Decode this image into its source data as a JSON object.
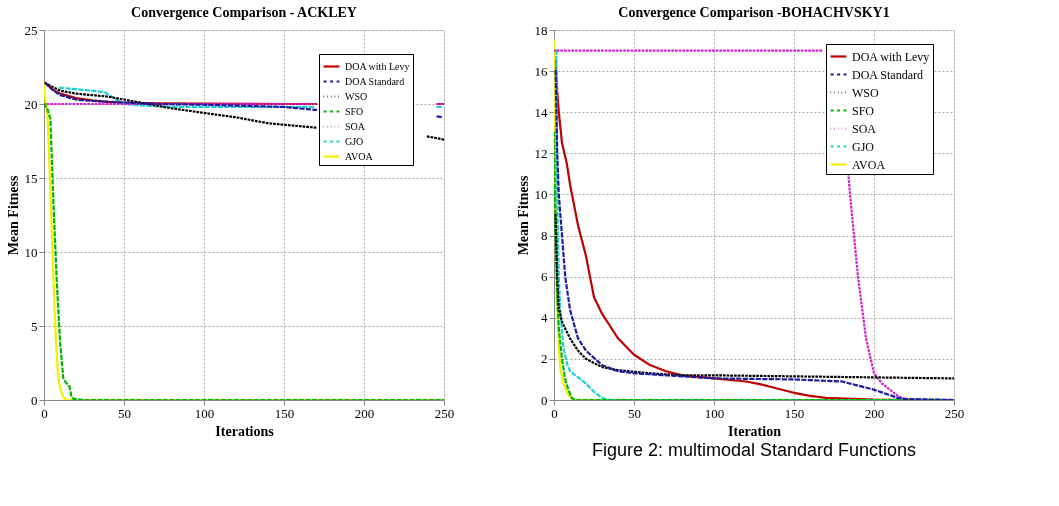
{
  "chart_data": [
    {
      "type": "line",
      "title": "Convergence Comparison - ACKLEY",
      "xlabel": "Iterations",
      "ylabel": "Mean Fitness",
      "xlim": [
        0,
        250
      ],
      "xticks": [
        0,
        50,
        100,
        150,
        200,
        250
      ],
      "ylim": [
        0,
        25
      ],
      "yticks": [
        0,
        5,
        10,
        15,
        20,
        25
      ],
      "grid": true,
      "legend": "top right",
      "series": [
        {
          "name": "DOA with Levy",
          "color": "#c00000",
          "line_style": "solid",
          "x": [
            1,
            5,
            10,
            20,
            30,
            40,
            50,
            70,
            100,
            150,
            170,
            200,
            246,
            250
          ],
          "values": [
            21.4,
            21.0,
            20.7,
            20.4,
            20.25,
            20.15,
            20.1,
            20.05,
            20.02,
            20.0,
            20.0,
            null,
            20.0,
            20.0
          ]
        },
        {
          "name": "DOA Standard",
          "color": "#1c1c9c",
          "line_style": "dashed",
          "x": [
            1,
            5,
            10,
            20,
            30,
            40,
            50,
            70,
            100,
            150,
            170,
            180,
            220,
            246,
            250
          ],
          "values": [
            21.4,
            21.0,
            20.6,
            20.3,
            20.2,
            20.15,
            20.1,
            20.0,
            19.95,
            19.8,
            19.6,
            null,
            null,
            19.15,
            19.1
          ]
        },
        {
          "name": "WSO",
          "color": "#000000",
          "line_style": "dotted",
          "x": [
            1,
            10,
            20,
            30,
            40,
            50,
            60,
            70,
            80,
            100,
            120,
            140,
            160,
            170,
            180,
            200,
            220,
            240,
            250
          ],
          "values": [
            21.4,
            20.9,
            20.7,
            20.6,
            20.5,
            20.3,
            20.1,
            19.9,
            19.7,
            19.4,
            19.1,
            18.7,
            18.5,
            18.4,
            null,
            null,
            null,
            17.8,
            17.6
          ]
        },
        {
          "name": "SFO",
          "color": "#00b400",
          "line_style": "dashed",
          "x": [
            0,
            2,
            4,
            5,
            6,
            8,
            10,
            12,
            13,
            15,
            16,
            17,
            18,
            20,
            25,
            250
          ],
          "values": [
            20,
            19.7,
            19.0,
            16,
            13,
            8,
            4,
            1.5,
            1.3,
            1.0,
            0.9,
            0.3,
            0.1,
            0.05,
            0,
            0
          ]
        },
        {
          "name": "SOA",
          "color": "#d020d0",
          "line_style": "dotted",
          "x": [
            0,
            170,
            200,
            246,
            250
          ],
          "values": [
            20,
            20,
            null,
            20,
            20
          ]
        },
        {
          "name": "GJO",
          "color": "#20d0d0",
          "line_style": "dashed",
          "x": [
            10,
            20,
            30,
            38,
            45,
            50,
            60,
            80,
            100,
            150,
            170,
            200,
            246,
            250
          ],
          "values": [
            21.1,
            21.0,
            20.9,
            20.8,
            20.3,
            20.0,
            19.9,
            19.8,
            19.8,
            19.8,
            19.8,
            null,
            19.8,
            19.8
          ]
        },
        {
          "name": "AVOA",
          "color": "#f0f000",
          "line_style": "solid",
          "x": [
            0,
            1,
            2,
            3,
            4,
            5,
            6,
            7,
            8,
            9,
            10,
            12,
            14,
            250
          ],
          "values": [
            21.4,
            20,
            19.6,
            17,
            14,
            11,
            8,
            5,
            3,
            1.5,
            0.8,
            0.2,
            0,
            0
          ]
        }
      ]
    },
    {
      "type": "line",
      "title": "Convergence Comparison -BOHACHVSKY1",
      "xlabel": "Iteration",
      "ylabel": "Mean Fitness",
      "xlim": [
        0,
        250
      ],
      "xticks": [
        0,
        50,
        100,
        150,
        200,
        250
      ],
      "ylim": [
        0,
        18
      ],
      "yticks": [
        0,
        2,
        4,
        6,
        8,
        10,
        12,
        14,
        16,
        18
      ],
      "grid": true,
      "legend": "top right",
      "annotations": [
        "Figure 2: multimodal Standard Functions"
      ],
      "series": [
        {
          "name": "DOA with Levy",
          "color": "#c00000",
          "line_style": "solid",
          "x": [
            1,
            2,
            3,
            5,
            8,
            10,
            15,
            20,
            25,
            30,
            35,
            40,
            50,
            60,
            70,
            80,
            100,
            120,
            130,
            140,
            150,
            160,
            170,
            200,
            250
          ],
          "values": [
            16.5,
            15,
            14,
            12.5,
            11.5,
            10.5,
            8.5,
            7,
            5,
            4.2,
            3.6,
            3,
            2.2,
            1.7,
            1.4,
            1.2,
            1.05,
            0.9,
            0.75,
            0.55,
            0.35,
            0.2,
            0.1,
            0.02,
            0
          ]
        },
        {
          "name": "DOA Standard",
          "color": "#1c1c9c",
          "line_style": "dashed",
          "x": [
            1,
            2,
            3,
            5,
            7,
            10,
            15,
            20,
            30,
            40,
            50,
            70,
            90,
            100,
            150,
            180,
            200,
            215,
            220,
            250
          ],
          "values": [
            16,
            12,
            10,
            8,
            6,
            4.4,
            3,
            2.4,
            1.7,
            1.4,
            1.3,
            1.2,
            1.1,
            1.05,
            1.0,
            0.9,
            0.5,
            0.1,
            0.05,
            0
          ]
        },
        {
          "name": "WSO",
          "color": "#000000",
          "line_style": "dotted",
          "x": [
            1,
            2,
            3,
            5,
            10,
            15,
            20,
            30,
            40,
            60,
            80,
            100,
            150,
            200,
            250
          ],
          "values": [
            9,
            6,
            4.5,
            3.8,
            3.0,
            2.4,
            2.0,
            1.6,
            1.45,
            1.3,
            1.2,
            1.2,
            1.15,
            1.1,
            1.05
          ]
        },
        {
          "name": "SFO",
          "color": "#00b400",
          "line_style": "dashed",
          "x": [
            0,
            1,
            2,
            3,
            5,
            7,
            9,
            11,
            13,
            250
          ],
          "values": [
            13,
            8,
            5,
            3.5,
            2.0,
            1.0,
            0.5,
            0.1,
            0,
            0
          ]
        },
        {
          "name": "SOA",
          "color": "#d020d0",
          "line_style": "dotted",
          "x": [
            0,
            168,
            180,
            184,
            185,
            190,
            195,
            200,
            205,
            210,
            215,
            220,
            250
          ],
          "values": [
            17,
            17,
            null,
            11,
            10,
            6,
            3,
            1.3,
            0.8,
            0.5,
            0.2,
            0,
            0
          ]
        },
        {
          "name": "GJO",
          "color": "#20d0d0",
          "line_style": "dashed",
          "x": [
            1.5,
            2,
            3,
            4,
            6,
            8,
            10,
            15,
            20,
            25,
            30,
            35,
            250
          ],
          "values": [
            17,
            10,
            6,
            4.2,
            2.5,
            1.8,
            1.4,
            1.1,
            0.8,
            0.4,
            0.1,
            0,
            0
          ]
        },
        {
          "name": "AVOA",
          "color": "#f0f000",
          "line_style": "solid",
          "x": [
            0,
            1,
            2,
            3,
            4,
            6,
            8,
            10,
            12,
            15,
            250
          ],
          "values": [
            17.5,
            10,
            5,
            2.5,
            1.5,
            0.8,
            0.4,
            0.15,
            0.05,
            0,
            0
          ]
        }
      ]
    }
  ]
}
